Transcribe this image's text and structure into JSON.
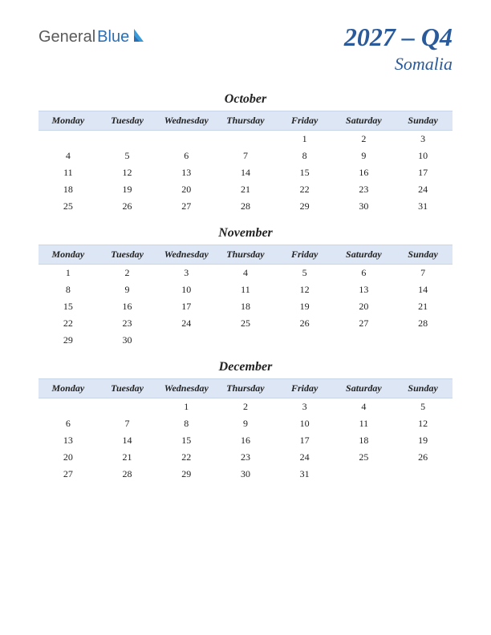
{
  "logo": {
    "general": "General",
    "blue": "Blue"
  },
  "title": {
    "main": "2027 – Q4",
    "sub": "Somalia"
  },
  "colors": {
    "header_bg": "#dce6f4",
    "header_border": "#c8d4e8",
    "title_color": "#2a5a9a",
    "text_color": "#222222",
    "logo_gray": "#5a5a5a",
    "logo_blue": "#2a6fb5",
    "logo_accent": "#3a9bd8"
  },
  "day_headers": [
    "Monday",
    "Tuesday",
    "Wednesday",
    "Thursday",
    "Friday",
    "Saturday",
    "Sunday"
  ],
  "months": [
    {
      "name": "October",
      "weeks": [
        [
          "",
          "",
          "",
          "",
          "1",
          "2",
          "3"
        ],
        [
          "4",
          "5",
          "6",
          "7",
          "8",
          "9",
          "10"
        ],
        [
          "11",
          "12",
          "13",
          "14",
          "15",
          "16",
          "17"
        ],
        [
          "18",
          "19",
          "20",
          "21",
          "22",
          "23",
          "24"
        ],
        [
          "25",
          "26",
          "27",
          "28",
          "29",
          "30",
          "31"
        ]
      ]
    },
    {
      "name": "November",
      "weeks": [
        [
          "1",
          "2",
          "3",
          "4",
          "5",
          "6",
          "7"
        ],
        [
          "8",
          "9",
          "10",
          "11",
          "12",
          "13",
          "14"
        ],
        [
          "15",
          "16",
          "17",
          "18",
          "19",
          "20",
          "21"
        ],
        [
          "22",
          "23",
          "24",
          "25",
          "26",
          "27",
          "28"
        ],
        [
          "29",
          "30",
          "",
          "",
          "",
          "",
          ""
        ]
      ]
    },
    {
      "name": "December",
      "weeks": [
        [
          "",
          "",
          "1",
          "2",
          "3",
          "4",
          "5"
        ],
        [
          "6",
          "7",
          "8",
          "9",
          "10",
          "11",
          "12"
        ],
        [
          "13",
          "14",
          "15",
          "16",
          "17",
          "18",
          "19"
        ],
        [
          "20",
          "21",
          "22",
          "23",
          "24",
          "25",
          "26"
        ],
        [
          "27",
          "28",
          "29",
          "30",
          "31",
          "",
          ""
        ]
      ]
    }
  ]
}
